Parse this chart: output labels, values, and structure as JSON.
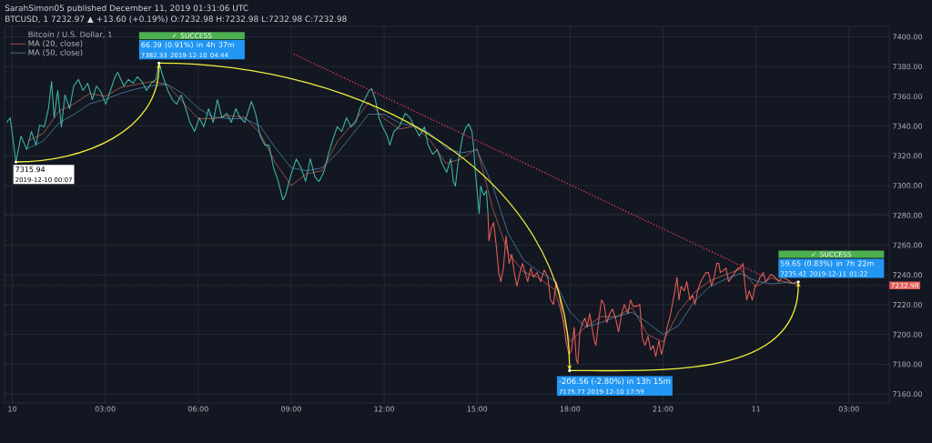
{
  "chart_data": {
    "type": "line",
    "title": "SarahSimon05 published December 11, 2019 01:31:06 UTC",
    "subtitle": "BTCUSD, 1 7232.97 ▲ +13.60 (+0.19%) O:7232.98 H:7232.98 L:7232.98 C:7232.98",
    "legend_title": "Bitcoin / U.S. Dollar, 1",
    "legend": "top left",
    "grid": true,
    "marker": "none",
    "xlim": [
      "2019-12-09T23:45",
      "2019-12-11T04:18"
    ],
    "ylim": [
      7154,
      7407
    ],
    "xticks": [
      {
        "value": "2019-12-10T00:00",
        "label": "10"
      },
      {
        "value": "2019-12-10T03:00",
        "label": "03:00"
      },
      {
        "value": "2019-12-10T06:00",
        "label": "06:00"
      },
      {
        "value": "2019-12-10T09:00",
        "label": "09:00"
      },
      {
        "value": "2019-12-10T12:00",
        "label": "12:00"
      },
      {
        "value": "2019-12-10T15:00",
        "label": "15:00"
      },
      {
        "value": "2019-12-10T18:00",
        "label": "18:00"
      },
      {
        "value": "2019-12-10T21:00",
        "label": "21:00"
      },
      {
        "value": "2019-12-11T00:00",
        "label": "11"
      },
      {
        "value": "2019-12-11T03:00",
        "label": "03:00"
      }
    ],
    "yticks": [
      {
        "value": 7160,
        "label": "7160.00"
      },
      {
        "value": 7180,
        "label": "7180.00"
      },
      {
        "value": 7200,
        "label": "7200.00"
      },
      {
        "value": 7220,
        "label": "7220.00"
      },
      {
        "value": 7240,
        "label": "7240.00"
      },
      {
        "value": 7260,
        "label": "7260.00"
      },
      {
        "value": 7280,
        "label": "7280.00"
      },
      {
        "value": 7300,
        "label": "7300.00"
      },
      {
        "value": 7320,
        "label": "7320.00"
      },
      {
        "value": 7340,
        "label": "7340.00"
      },
      {
        "value": 7360,
        "label": "7360.00"
      },
      {
        "value": 7380,
        "label": "7380.00"
      },
      {
        "value": 7400,
        "label": "7400.00"
      }
    ],
    "ref_lines": [
      {
        "axis": "y",
        "value": 7232.98,
        "label": "7232.98",
        "color": "#e25b56",
        "line_style": "dotted"
      },
      {
        "axis": "y",
        "value": 7281,
        "color": "#8a8f9c",
        "line_style": "dotted"
      }
    ],
    "annotations": [
      {
        "text": "7315.94",
        "x": "2019-12-10T00:07",
        "y": 7315.94
      },
      "2019-12-10 00:07",
      {
        "text": "66.39 (0.91%) in 4h 37m",
        "x": "2019-12-10T04:44",
        "y": 7382.33
      },
      "7382.33 2019-12-10 04:44",
      "✓ SUCCESS",
      {
        "text": "-206.56 (-2.80%) in 13h 15m",
        "x": "2019-12-10T17:59",
        "y": 7175.77
      },
      "7175.77 2019-12-10 17:59",
      {
        "text": "59.65 (0.83%) in 7h 22m",
        "x": "2019-12-11T01:22",
        "y": 7235.42
      },
      "7235.42 2019-12-11 01:22",
      "✓ SUCCESS"
    ],
    "series": [
      {
        "color": "#3bb3a3",
        "x": [
          "2019-12-09T23:49",
          "2019-12-09T23:56",
          "2019-12-10T00:07",
          "2019-12-10T00:17",
          "2019-12-10T00:28",
          "2019-12-10T00:37",
          "2019-12-10T00:46",
          "2019-12-10T00:53",
          "2019-12-10T01:02",
          "2019-12-10T01:10",
          "2019-12-10T01:16",
          "2019-12-10T01:21",
          "2019-12-10T01:28",
          "2019-12-10T01:35",
          "2019-12-10T01:42",
          "2019-12-10T01:51",
          "2019-12-10T01:59",
          "2019-12-10T02:08",
          "2019-12-10T02:17",
          "2019-12-10T02:26",
          "2019-12-10T02:35",
          "2019-12-10T02:43",
          "2019-12-10T02:52",
          "2019-12-10T03:01",
          "2019-12-10T03:10",
          "2019-12-10T03:19",
          "2019-12-10T03:24",
          "2019-12-10T03:36",
          "2019-12-10T03:45",
          "2019-12-10T03:54",
          "2019-12-10T04:02",
          "2019-12-10T04:11",
          "2019-12-10T04:20",
          "2019-12-10T04:29",
          "2019-12-10T04:38",
          "2019-12-10T04:44",
          "2019-12-10T04:52",
          "2019-12-10T05:01",
          "2019-12-10T05:10",
          "2019-12-10T05:18",
          "2019-12-10T05:27",
          "2019-12-10T05:36",
          "2019-12-10T05:44",
          "2019-12-10T05:53",
          "2019-12-10T06:02",
          "2019-12-10T06:11",
          "2019-12-10T06:20",
          "2019-12-10T06:29",
          "2019-12-10T06:37",
          "2019-12-10T06:46",
          "2019-12-10T06:55",
          "2019-12-10T07:04",
          "2019-12-10T07:13",
          "2019-12-10T07:21",
          "2019-12-10T07:30",
          "2019-12-10T07:43",
          "2019-12-10T07:51",
          "2019-12-10T08:00",
          "2019-12-10T08:09",
          "2019-12-10T08:17",
          "2019-12-10T08:26",
          "2019-12-10T08:35",
          "2019-12-10T08:44",
          "2019-12-10T08:49",
          "2019-12-10T08:56",
          "2019-12-10T09:01",
          "2019-12-10T09:10",
          "2019-12-10T09:19",
          "2019-12-10T09:28",
          "2019-12-10T09:37",
          "2019-12-10T09:46",
          "2019-12-10T09:54",
          "2019-12-10T10:03",
          "2019-12-10T10:12",
          "2019-12-10T10:20",
          "2019-12-10T10:29",
          "2019-12-10T10:38",
          "2019-12-10T10:47",
          "2019-12-10T10:56",
          "2019-12-10T11:05",
          "2019-12-10T11:13",
          "2019-12-10T11:22",
          "2019-12-10T11:31",
          "2019-12-10T11:36",
          "2019-12-10T11:43",
          "2019-12-10T11:50",
          "2019-12-10T11:57",
          "2019-12-10T12:06",
          "2019-12-10T12:11",
          "2019-12-10T12:19",
          "2019-12-10T12:29",
          "2019-12-10T12:41",
          "2019-12-10T12:50",
          "2019-12-10T12:59",
          "2019-12-10T13:08",
          "2019-12-10T13:18",
          "2019-12-10T13:25",
          "2019-12-10T13:34",
          "2019-12-10T13:43",
          "2019-12-10T13:52",
          "2019-12-10T14:01",
          "2019-12-10T14:09",
          "2019-12-10T14:14",
          "2019-12-10T14:18",
          "2019-12-10T14:23",
          "2019-12-10T14:32",
          "2019-12-10T14:39",
          "2019-12-10T14:44",
          "2019-12-10T14:50",
          "2019-12-10T14:53",
          "2019-12-10T14:56",
          "2019-12-10T15:00",
          "2019-12-10T15:04",
          "2019-12-10T15:07",
          "2019-12-10T15:13",
          "2019-12-10T15:18",
          "2019-12-10T15:21"
        ],
        "values": [
          7342.5,
          7345.6,
          7315.9,
          7333.3,
          7324.2,
          7336.4,
          7327.2,
          7340.7,
          7339.5,
          7351.7,
          7370.0,
          7345.6,
          7363.9,
          7339.5,
          7360.9,
          7351.7,
          7367.0,
          7371.3,
          7363.9,
          7368.8,
          7357.8,
          7367.0,
          7362.7,
          7354.7,
          7363.9,
          7373.1,
          7376.1,
          7367.0,
          7371.3,
          7368.8,
          7373.1,
          7370.0,
          7363.9,
          7368.8,
          7371.3,
          7382.3,
          7373.1,
          7363.9,
          7357.8,
          7354.7,
          7360.9,
          7351.7,
          7342.5,
          7336.4,
          7345.6,
          7339.5,
          7351.7,
          7342.5,
          7357.8,
          7345.6,
          7348.6,
          7342.5,
          7351.7,
          7345.6,
          7342.5,
          7356.6,
          7348.6,
          7333.3,
          7327.2,
          7327.2,
          7311.9,
          7302.8,
          7290.5,
          7293.6,
          7302.8,
          7308.9,
          7318.0,
          7311.9,
          7302.8,
          7318.0,
          7305.8,
          7302.8,
          7308.9,
          7321.1,
          7330.3,
          7339.5,
          7336.4,
          7345.6,
          7339.5,
          7342.5,
          7351.7,
          7357.8,
          7363.9,
          7365.1,
          7357.8,
          7345.6,
          7339.5,
          7333.3,
          7327.2,
          7336.4,
          7339.5,
          7348.6,
          7345.6,
          7339.5,
          7333.3,
          7339.5,
          7327.2,
          7321.1,
          7324.2,
          7315.0,
          7308.9,
          7318.0,
          7302.8,
          7299.7,
          7315.0,
          7333.3,
          7339.5,
          7341.3,
          7336.4,
          7327.2,
          7311.9,
          7296.6,
          7281.4,
          7299.7,
          7293.6,
          7296.6,
          7281.4
        ]
      },
      {
        "color": "#e25b56",
        "x": [
          "2019-12-10T15:21",
          "2019-12-10T15:23",
          "2019-12-10T15:28",
          "2019-12-10T15:32",
          "2019-12-10T15:37",
          "2019-12-10T15:42",
          "2019-12-10T15:46",
          "2019-12-10T15:51",
          "2019-12-10T15:56",
          "2019-12-10T16:02",
          "2019-12-10T16:07",
          "2019-12-10T16:12",
          "2019-12-10T16:17",
          "2019-12-10T16:23",
          "2019-12-10T16:28",
          "2019-12-10T16:33",
          "2019-12-10T16:38",
          "2019-12-10T16:44",
          "2019-12-10T16:49",
          "2019-12-10T16:56",
          "2019-12-10T17:03",
          "2019-12-10T17:10",
          "2019-12-10T17:17",
          "2019-12-10T17:22",
          "2019-12-10T17:28",
          "2019-12-10T17:33",
          "2019-12-10T17:38",
          "2019-12-10T17:44",
          "2019-12-10T17:49",
          "2019-12-10T17:52",
          "2019-12-10T17:58",
          "2019-12-10T18:03",
          "2019-12-10T18:08",
          "2019-12-10T18:12",
          "2019-12-10T18:15",
          "2019-12-10T18:19",
          "2019-12-10T18:24",
          "2019-12-10T18:29",
          "2019-12-10T18:33",
          "2019-12-10T18:38",
          "2019-12-10T18:41",
          "2019-12-10T18:47",
          "2019-12-10T18:50",
          "2019-12-10T18:56",
          "2019-12-10T19:01",
          "2019-12-10T19:06",
          "2019-12-10T19:11",
          "2019-12-10T19:17",
          "2019-12-10T19:22",
          "2019-12-10T19:28",
          "2019-12-10T19:34",
          "2019-12-10T19:40",
          "2019-12-10T19:45",
          "2019-12-10T19:52",
          "2019-12-10T19:57",
          "2019-12-10T20:02",
          "2019-12-10T20:10",
          "2019-12-10T20:15",
          "2019-12-10T20:20",
          "2019-12-10T20:25",
          "2019-12-10T20:31",
          "2019-12-10T20:36",
          "2019-12-10T20:41",
          "2019-12-10T20:46",
          "2019-12-10T20:52",
          "2019-12-10T20:57",
          "2019-12-10T21:02",
          "2019-12-10T21:08",
          "2019-12-10T21:13",
          "2019-12-10T21:18",
          "2019-12-10T21:23",
          "2019-12-10T21:27",
          "2019-12-10T21:31",
          "2019-12-10T21:35",
          "2019-12-10T21:41",
          "2019-12-10T21:46",
          "2019-12-10T21:52",
          "2019-12-10T21:57",
          "2019-12-10T22:02",
          "2019-12-10T22:07",
          "2019-12-10T22:13",
          "2019-12-10T22:18",
          "2019-12-10T22:23",
          "2019-12-10T22:28",
          "2019-12-10T22:34",
          "2019-12-10T22:39",
          "2019-12-10T22:44",
          "2019-12-10T22:48",
          "2019-12-10T22:51",
          "2019-12-10T22:56",
          "2019-12-10T23:02",
          "2019-12-10T23:07",
          "2019-12-10T23:13",
          "2019-12-10T23:19",
          "2019-12-10T23:25",
          "2019-12-10T23:30",
          "2019-12-10T23:35",
          "2019-12-10T23:38",
          "2019-12-10T23:42",
          "2019-12-10T23:47",
          "2019-12-10T23:53",
          "2019-12-10T23:58",
          "2019-12-11T00:03",
          "2019-12-11T00:08",
          "2019-12-11T00:14",
          "2019-12-11T00:19",
          "2019-12-11T00:25",
          "2019-12-11T00:29",
          "2019-12-11T00:37",
          "2019-12-11T00:44",
          "2019-12-11T00:51",
          "2019-12-11T01:01",
          "2019-12-11T01:12",
          "2019-12-11T01:19",
          "2019-12-11T01:22"
        ],
        "values": [
          7281.4,
          7263.0,
          7272.2,
          7275.2,
          7260.0,
          7241.6,
          7235.5,
          7244.7,
          7266.1,
          7247.7,
          7253.8,
          7241.6,
          7232.4,
          7241.6,
          7247.7,
          7241.6,
          7235.5,
          7244.7,
          7238.5,
          7241.6,
          7235.5,
          7243.4,
          7238.5,
          7223.2,
          7220.2,
          7235.5,
          7229.4,
          7214.1,
          7203.7,
          7195.7,
          7186.6,
          7189.6,
          7204.9,
          7183.5,
          7180.4,
          7201.8,
          7207.9,
          7211.0,
          7204.9,
          7214.1,
          7207.9,
          7195.7,
          7192.7,
          7211.0,
          7223.2,
          7220.2,
          7207.9,
          7214.1,
          7217.1,
          7211.0,
          7201.8,
          7214.1,
          7220.2,
          7214.1,
          7223.2,
          7219.0,
          7219.0,
          7220.2,
          7197.6,
          7192.7,
          7198.8,
          7189.6,
          7192.7,
          7185.3,
          7195.7,
          7186.6,
          7193.9,
          7204.9,
          7211.0,
          7220.2,
          7229.4,
          7238.5,
          7223.2,
          7232.4,
          7229.4,
          7235.5,
          7223.2,
          7226.3,
          7220.2,
          7229.4,
          7235.5,
          7238.5,
          7241.6,
          7241.6,
          7232.4,
          7238.5,
          7247.7,
          7247.7,
          7241.6,
          7242.8,
          7244.7,
          7235.5,
          7238.5,
          7241.6,
          7244.7,
          7244.7,
          7247.7,
          7235.5,
          7223.2,
          7229.4,
          7223.2,
          7232.4,
          7234.3,
          7238.5,
          7241.6,
          7235.5,
          7238.5,
          7240.4,
          7238.5,
          7235.5,
          7238.5,
          7236.7,
          7234.3,
          7235.5,
          7232.4
        ]
      },
      {
        "name": "MA (20, close)",
        "color": "#e57a5f",
        "x": [
          "2019-12-10T00:30",
          "2019-12-10T01:00",
          "2019-12-10T01:30",
          "2019-12-10T02:00",
          "2019-12-10T02:30",
          "2019-12-10T03:00",
          "2019-12-10T03:30",
          "2019-12-10T04:00",
          "2019-12-10T04:30",
          "2019-12-10T05:00",
          "2019-12-10T05:30",
          "2019-12-10T06:00",
          "2019-12-10T06:30",
          "2019-12-10T07:00",
          "2019-12-10T07:30",
          "2019-12-10T08:00",
          "2019-12-10T08:30",
          "2019-12-10T09:00",
          "2019-12-10T09:30",
          "2019-12-10T10:00",
          "2019-12-10T10:30",
          "2019-12-10T11:00",
          "2019-12-10T11:30",
          "2019-12-10T12:00",
          "2019-12-10T12:30",
          "2019-12-10T13:00",
          "2019-12-10T13:30",
          "2019-12-10T14:00",
          "2019-12-10T14:30",
          "2019-12-10T15:00",
          "2019-12-10T15:30",
          "2019-12-10T16:00",
          "2019-12-10T16:30",
          "2019-12-10T17:00",
          "2019-12-10T17:30",
          "2019-12-10T18:00",
          "2019-12-10T18:30",
          "2019-12-10T19:00",
          "2019-12-10T19:30",
          "2019-12-10T20:00",
          "2019-12-10T20:30",
          "2019-12-10T21:00",
          "2019-12-10T21:30",
          "2019-12-10T22:00",
          "2019-12-10T22:30",
          "2019-12-10T23:00",
          "2019-12-10T23:30",
          "2019-12-11T00:00",
          "2019-12-11T00:30",
          "2019-12-11T01:00",
          "2019-12-11T01:18"
        ],
        "values": [
          7330,
          7335,
          7350,
          7355,
          7362,
          7360,
          7366,
          7368,
          7370,
          7368,
          7356,
          7345,
          7345,
          7347,
          7346,
          7335,
          7315,
          7300,
          7308,
          7310,
          7330,
          7342,
          7356,
          7345,
          7338,
          7340,
          7330,
          7315,
          7318,
          7325,
          7285,
          7255,
          7242,
          7238,
          7230,
          7195,
          7205,
          7212,
          7212,
          7218,
          7200,
          7195,
          7215,
          7228,
          7236,
          7240,
          7244,
          7232,
          7238,
          7235,
          7234
        ]
      },
      {
        "name": "MA (50, close)",
        "color": "#5fa8d3",
        "x": [
          "2019-12-10T00:30",
          "2019-12-10T01:00",
          "2019-12-10T01:30",
          "2019-12-10T02:00",
          "2019-12-10T02:30",
          "2019-12-10T03:00",
          "2019-12-10T03:30",
          "2019-12-10T04:00",
          "2019-12-10T04:30",
          "2019-12-10T05:00",
          "2019-12-10T05:30",
          "2019-12-10T06:00",
          "2019-12-10T06:30",
          "2019-12-10T07:00",
          "2019-12-10T07:30",
          "2019-12-10T08:00",
          "2019-12-10T08:30",
          "2019-12-10T09:00",
          "2019-12-10T09:30",
          "2019-12-10T10:00",
          "2019-12-10T10:30",
          "2019-12-10T11:00",
          "2019-12-10T11:30",
          "2019-12-10T12:00",
          "2019-12-10T12:30",
          "2019-12-10T13:00",
          "2019-12-10T13:30",
          "2019-12-10T14:00",
          "2019-12-10T14:30",
          "2019-12-10T15:00",
          "2019-12-10T15:30",
          "2019-12-10T16:00",
          "2019-12-10T16:30",
          "2019-12-10T17:00",
          "2019-12-10T17:30",
          "2019-12-10T18:00",
          "2019-12-10T18:30",
          "2019-12-10T19:00",
          "2019-12-10T19:30",
          "2019-12-10T20:00",
          "2019-12-10T20:30",
          "2019-12-10T21:00",
          "2019-12-10T21:30",
          "2019-12-10T22:00",
          "2019-12-10T22:30",
          "2019-12-10T23:00",
          "2019-12-10T23:30",
          "2019-12-11T00:00",
          "2019-12-11T00:30",
          "2019-12-11T01:00",
          "2019-12-11T01:18"
        ],
        "values": [
          7325,
          7330,
          7342,
          7348,
          7355,
          7358,
          7362,
          7365,
          7367,
          7368,
          7362,
          7352,
          7346,
          7345,
          7345,
          7340,
          7325,
          7312,
          7310,
          7312,
          7322,
          7335,
          7348,
          7348,
          7342,
          7340,
          7335,
          7325,
          7322,
          7324,
          7300,
          7268,
          7250,
          7242,
          7236,
          7215,
          7205,
          7208,
          7212,
          7215,
          7208,
          7200,
          7206,
          7222,
          7232,
          7237,
          7241,
          7236,
          7234,
          7235,
          7234
        ]
      },
      {
        "color": "#d8336a",
        "line_style": "dotted",
        "x": [
          "2019-12-10T09:05",
          "2019-12-11T00:18"
        ],
        "values": [
          7388.4,
          7238.5
        ]
      }
    ]
  }
}
